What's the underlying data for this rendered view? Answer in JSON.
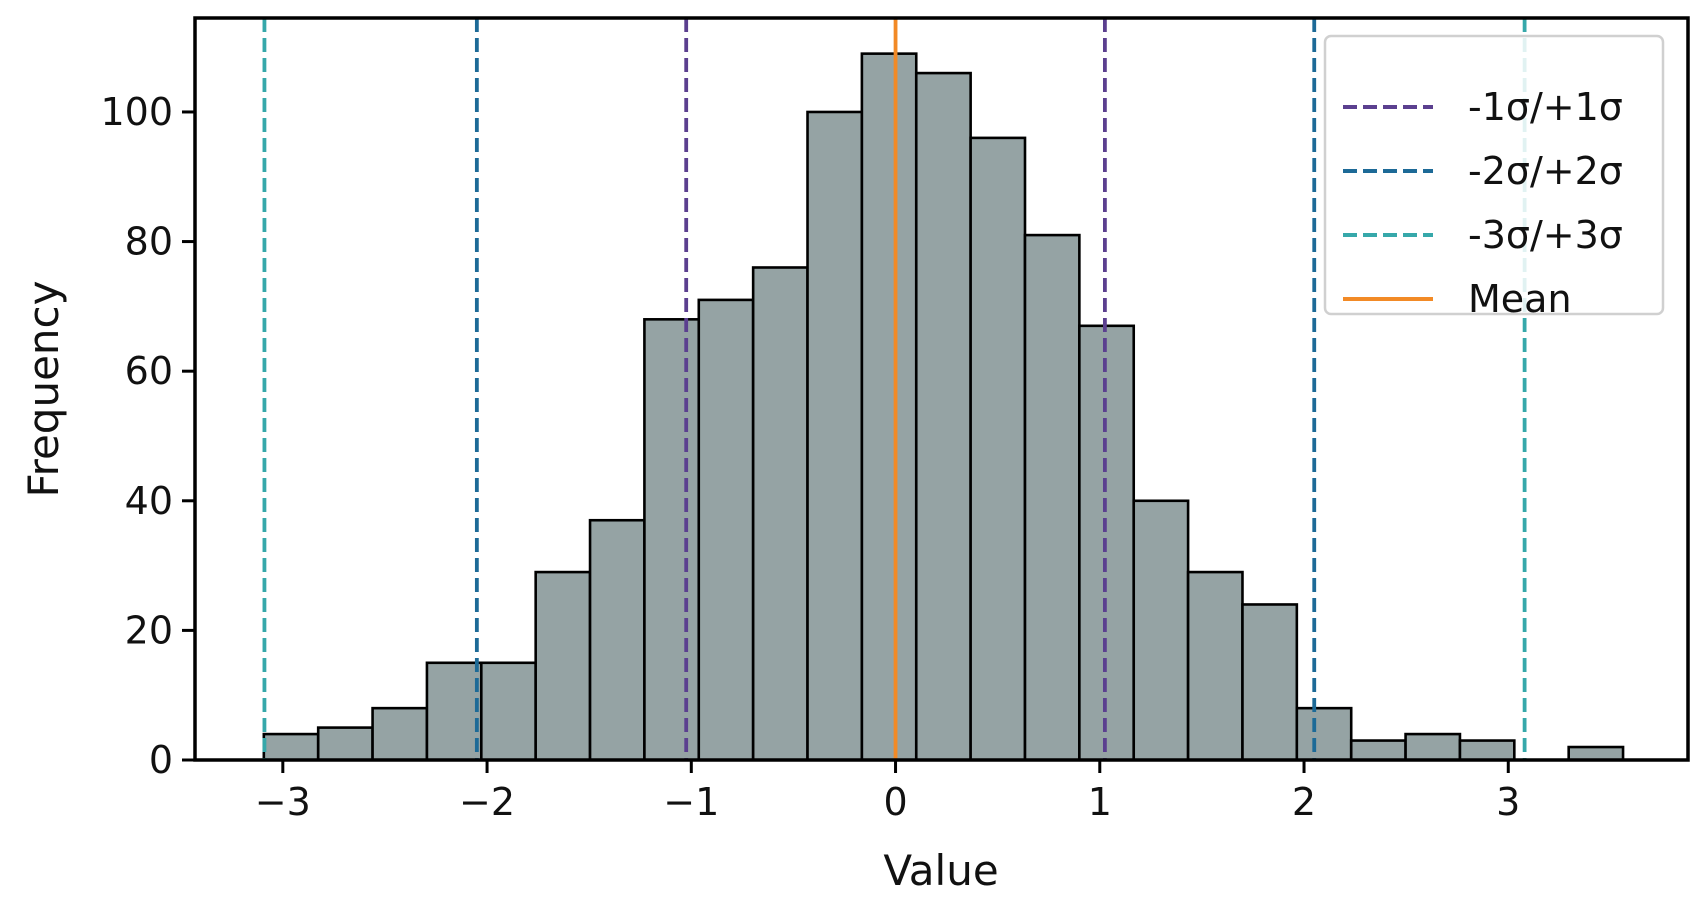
{
  "chart_data": {
    "type": "bar",
    "subtype": "histogram",
    "xlabel": "Value",
    "ylabel": "Frequency",
    "xlim": [
      -3.43,
      3.88
    ],
    "ylim": [
      0,
      114.5
    ],
    "grid": false,
    "legend_placement": "top-right",
    "x_ticks": [
      -3,
      -2,
      -1,
      0,
      1,
      2,
      3
    ],
    "x_tick_labels": [
      "−3",
      "−2",
      "−1",
      "0",
      "1",
      "2",
      "3"
    ],
    "y_ticks": [
      0,
      20,
      40,
      60,
      80,
      100
    ],
    "y_tick_labels": [
      "0",
      "20",
      "40",
      "60",
      "80",
      "100"
    ],
    "bin_width": 0.2662,
    "bins": [
      {
        "left": -3.093,
        "count": 4
      },
      {
        "left": -2.8268,
        "count": 5
      },
      {
        "left": -2.5606,
        "count": 8
      },
      {
        "left": -2.2944,
        "count": 15
      },
      {
        "left": -2.0282,
        "count": 15
      },
      {
        "left": -1.762,
        "count": 29
      },
      {
        "left": -1.4958,
        "count": 37
      },
      {
        "left": -1.2296,
        "count": 68
      },
      {
        "left": -0.9634,
        "count": 71
      },
      {
        "left": -0.6972,
        "count": 76
      },
      {
        "left": -0.431,
        "count": 100
      },
      {
        "left": -0.1648,
        "count": 109
      },
      {
        "left": 0.1014,
        "count": 106
      },
      {
        "left": 0.3676,
        "count": 96
      },
      {
        "left": 0.6338,
        "count": 81
      },
      {
        "left": 0.9,
        "count": 67
      },
      {
        "left": 1.1662,
        "count": 40
      },
      {
        "left": 1.4324,
        "count": 29
      },
      {
        "left": 1.6986,
        "count": 24
      },
      {
        "left": 1.9648,
        "count": 8
      },
      {
        "left": 2.231,
        "count": 3
      },
      {
        "left": 2.4972,
        "count": 4
      },
      {
        "left": 2.7634,
        "count": 3
      },
      {
        "left": 3.0296,
        "count": 0
      },
      {
        "left": 3.2958,
        "count": 2
      }
    ],
    "reference_lines": [
      {
        "name": "-1σ/+1σ",
        "positions": [
          -1.025,
          1.025
        ],
        "style": "dashed",
        "color": "#5b3f8f"
      },
      {
        "name": "-2σ/+2σ",
        "positions": [
          -2.05,
          2.05
        ],
        "style": "dashed",
        "color": "#1d6a97"
      },
      {
        "name": "-3σ/+3σ",
        "positions": [
          -3.09,
          3.08
        ],
        "style": "dashed",
        "color": "#36a8aa"
      },
      {
        "name": "Mean",
        "positions": [
          0.0
        ],
        "style": "solid",
        "color": "#f28a26"
      }
    ],
    "colors": {
      "bar_fill": "#95a3a4",
      "bar_edge": "#000000",
      "axes": "#000000"
    }
  }
}
